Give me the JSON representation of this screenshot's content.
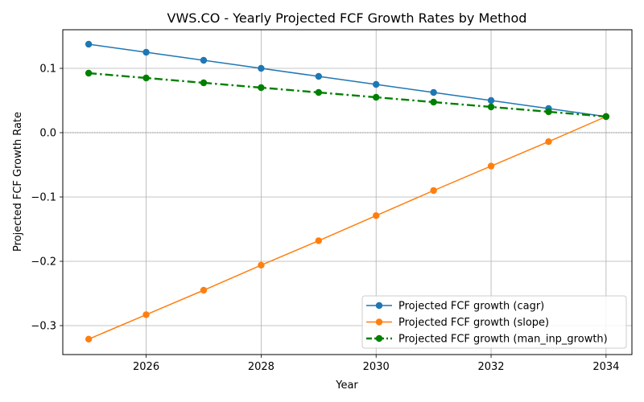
{
  "chart_data": {
    "type": "line",
    "title": "VWS.CO - Yearly Projected FCF Growth Rates by Method",
    "xlabel": "Year",
    "ylabel": "Projected FCF Growth Rate",
    "x": [
      2025,
      2026,
      2027,
      2028,
      2029,
      2030,
      2031,
      2032,
      2033,
      2034
    ],
    "xlim": [
      2024.55,
      2034.45
    ],
    "ylim": [
      -0.345,
      0.16
    ],
    "x_ticks": [
      2026,
      2028,
      2030,
      2032,
      2034
    ],
    "y_ticks": [
      -0.3,
      -0.2,
      -0.1,
      0.0,
      0.1
    ],
    "x_tick_labels": [
      "2026",
      "2028",
      "2030",
      "2032",
      "2034"
    ],
    "y_tick_labels": [
      "−0.3",
      "−0.2",
      "−0.1",
      "0.0",
      "0.1"
    ],
    "grid": true,
    "zero_line": true,
    "legend_position": "lower-right",
    "series": [
      {
        "name": "Projected FCF growth (cagr)",
        "color": "#1f77b4",
        "line_style": "solid",
        "marker": "circle",
        "values": [
          0.1375,
          0.125,
          0.1125,
          0.1,
          0.0875,
          0.075,
          0.0625,
          0.05,
          0.0375,
          0.025
        ]
      },
      {
        "name": "Projected FCF growth (slope)",
        "color": "#ff7f0e",
        "line_style": "solid",
        "marker": "circle",
        "values": [
          -0.321,
          -0.283,
          -0.245,
          -0.206,
          -0.168,
          -0.129,
          -0.09,
          -0.052,
          -0.014,
          0.025
        ]
      },
      {
        "name": "Projected FCF growth (man_inp_growth)",
        "color": "#008000",
        "line_style": "dashdot",
        "marker": "circle",
        "values": [
          0.0925,
          0.085,
          0.0775,
          0.07,
          0.0625,
          0.055,
          0.0475,
          0.04,
          0.0325,
          0.025
        ]
      }
    ]
  }
}
